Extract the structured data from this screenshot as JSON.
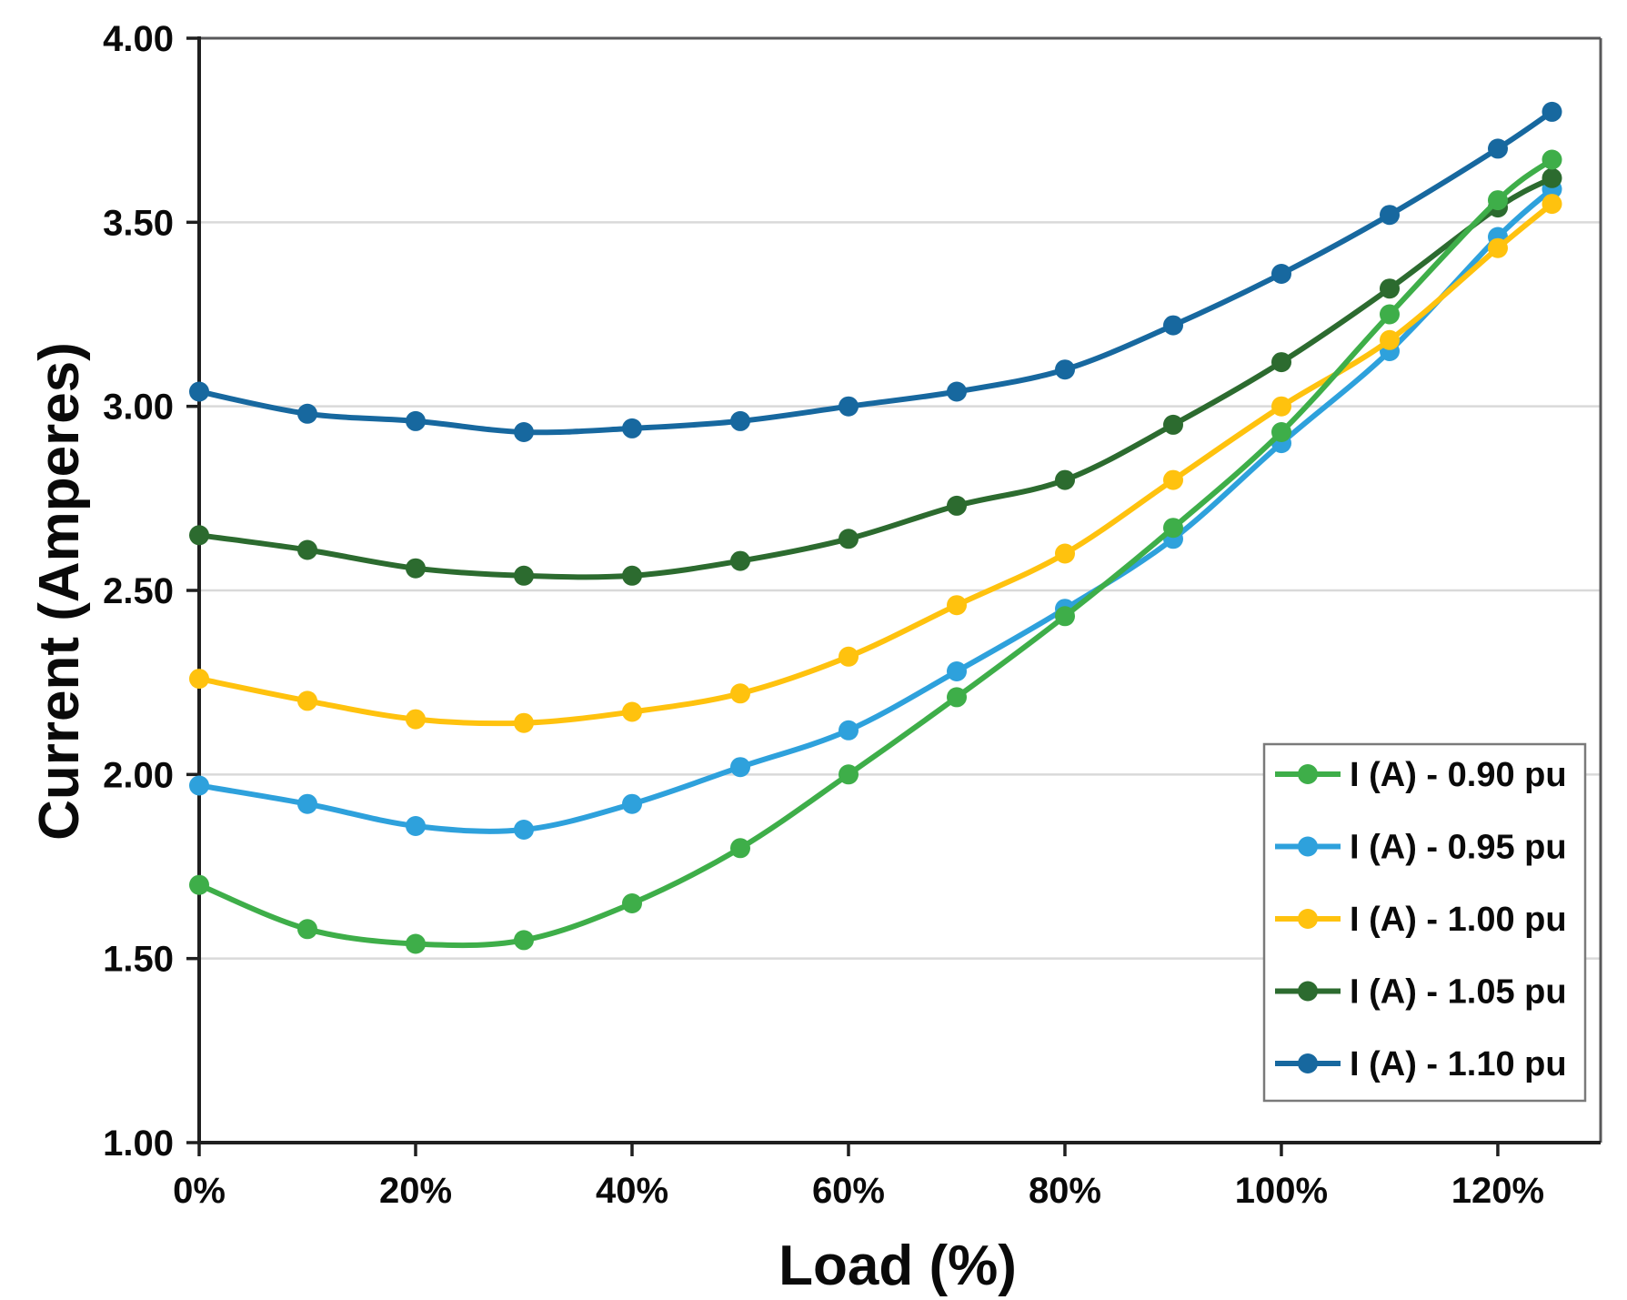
{
  "chart_data": {
    "type": "line",
    "title": "",
    "xlabel": "Load (%)",
    "ylabel": "Current (Amperes)",
    "xlim": [
      0,
      129.5
    ],
    "ylim": [
      1.0,
      4.0
    ],
    "grid": "horizontal-only",
    "legend_position": "inside-lower-right",
    "x": [
      0,
      10,
      20,
      30,
      40,
      50,
      60,
      70,
      80,
      90,
      100,
      110,
      120,
      125
    ],
    "x_tick_values": [
      0,
      20,
      40,
      60,
      80,
      100,
      120
    ],
    "x_tick_labels": [
      "0%",
      "20%",
      "40%",
      "60%",
      "80%",
      "100%",
      "120%"
    ],
    "y_tick_values": [
      1.0,
      1.5,
      2.0,
      2.5,
      3.0,
      3.5,
      4.0
    ],
    "y_tick_labels": [
      "1.00",
      "1.50",
      "2.00",
      "2.50",
      "3.00",
      "3.50",
      "4.00"
    ],
    "series": [
      {
        "id": "0-90-pu",
        "name": "I (A) - 0.90 pu",
        "color": "#3EAE49",
        "values": [
          1.7,
          1.58,
          1.54,
          1.55,
          1.65,
          1.8,
          2.0,
          2.21,
          2.43,
          2.67,
          2.93,
          3.25,
          3.56,
          3.67
        ]
      },
      {
        "id": "0-95-pu",
        "name": "I (A) - 0.95 pu",
        "color": "#2EA1DC",
        "values": [
          1.97,
          1.92,
          1.86,
          1.85,
          1.92,
          2.02,
          2.12,
          2.28,
          2.45,
          2.64,
          2.9,
          3.15,
          3.46,
          3.59
        ]
      },
      {
        "id": "1-00-pu",
        "name": "I (A) - 1.00 pu",
        "color": "#FFC20E",
        "values": [
          2.26,
          2.2,
          2.15,
          2.14,
          2.17,
          2.22,
          2.32,
          2.46,
          2.6,
          2.8,
          3.0,
          3.18,
          3.43,
          3.55
        ]
      },
      {
        "id": "1-05-pu",
        "name": "I (A) - 1.05 pu",
        "color": "#2C6B2F",
        "values": [
          2.65,
          2.61,
          2.56,
          2.54,
          2.54,
          2.58,
          2.64,
          2.73,
          2.8,
          2.95,
          3.12,
          3.32,
          3.54,
          3.62
        ]
      },
      {
        "id": "1-10-pu",
        "name": "I (A) - 1.10 pu",
        "color": "#17689F",
        "values": [
          3.04,
          2.98,
          2.96,
          2.93,
          2.94,
          2.96,
          3.0,
          3.04,
          3.1,
          3.22,
          3.36,
          3.52,
          3.7,
          3.8
        ]
      }
    ],
    "colors": {
      "background": "#FFFFFF",
      "grid": "#D9D9D9",
      "axis": "#1F1F1F",
      "frame": "#58585A",
      "legend_border": "#7A7A7A",
      "text": "#0A0A0A"
    }
  }
}
